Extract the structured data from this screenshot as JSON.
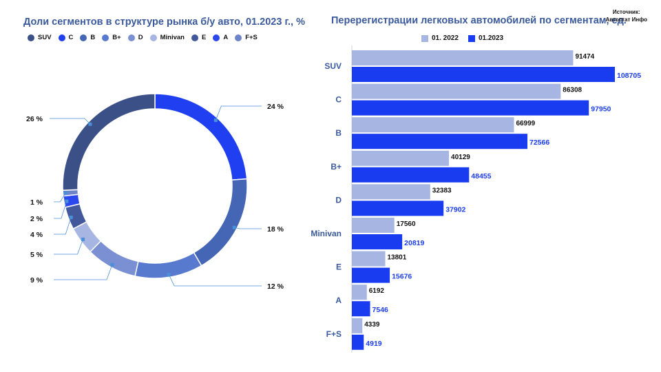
{
  "source": {
    "line1": "Источник:",
    "line2": "Автостат Инфо"
  },
  "chart_data": [
    {
      "type": "pie",
      "title": "Доли сегментов в структуре рынка б/у авто, 01.2023 г., %",
      "legend": [
        "SUV",
        "C",
        "B",
        "B+",
        "D",
        "Minivan",
        "E",
        "A",
        "F+S"
      ],
      "slices": [
        {
          "label": "C",
          "value": 24,
          "text": "24 %",
          "color": "#1f3ff0"
        },
        {
          "label": "B",
          "value": 18,
          "text": "18 %",
          "color": "#4566b5"
        },
        {
          "label": "B+",
          "value": 12,
          "text": "12 %",
          "color": "#587ace"
        },
        {
          "label": "D",
          "value": 9,
          "text": "9 %",
          "color": "#7b90d2"
        },
        {
          "label": "Minivan",
          "value": 5,
          "text": "5 %",
          "color": "#a6b5e2"
        },
        {
          "label": "E",
          "value": 4,
          "text": "4 %",
          "color": "#43589a"
        },
        {
          "label": "A",
          "value": 2,
          "text": "2 %",
          "color": "#2b48ee"
        },
        {
          "label": "F+S",
          "value": 1,
          "text": "1 %",
          "color": "#6d84c8"
        },
        {
          "label": "SUV",
          "value": 26,
          "text": "26 %",
          "color": "#3b5087"
        }
      ]
    },
    {
      "type": "bar",
      "title": "Перерегистрации легковых автомобилей по сегментам, ед.",
      "categories": [
        "SUV",
        "C",
        "B",
        "B+",
        "D",
        "Minivan",
        "E",
        "A",
        "F+S"
      ],
      "series": [
        {
          "name": "01. 2022",
          "color": "#a6b5e2",
          "values": [
            91474,
            86308,
            66999,
            40129,
            32383,
            17560,
            13801,
            6192,
            4339
          ]
        },
        {
          "name": "01.2023",
          "color": "#1a3cf0",
          "values": [
            108705,
            97950,
            72566,
            48455,
            37902,
            20819,
            15676,
            7546,
            4919
          ]
        }
      ],
      "xlim": [
        0,
        108705
      ]
    }
  ]
}
